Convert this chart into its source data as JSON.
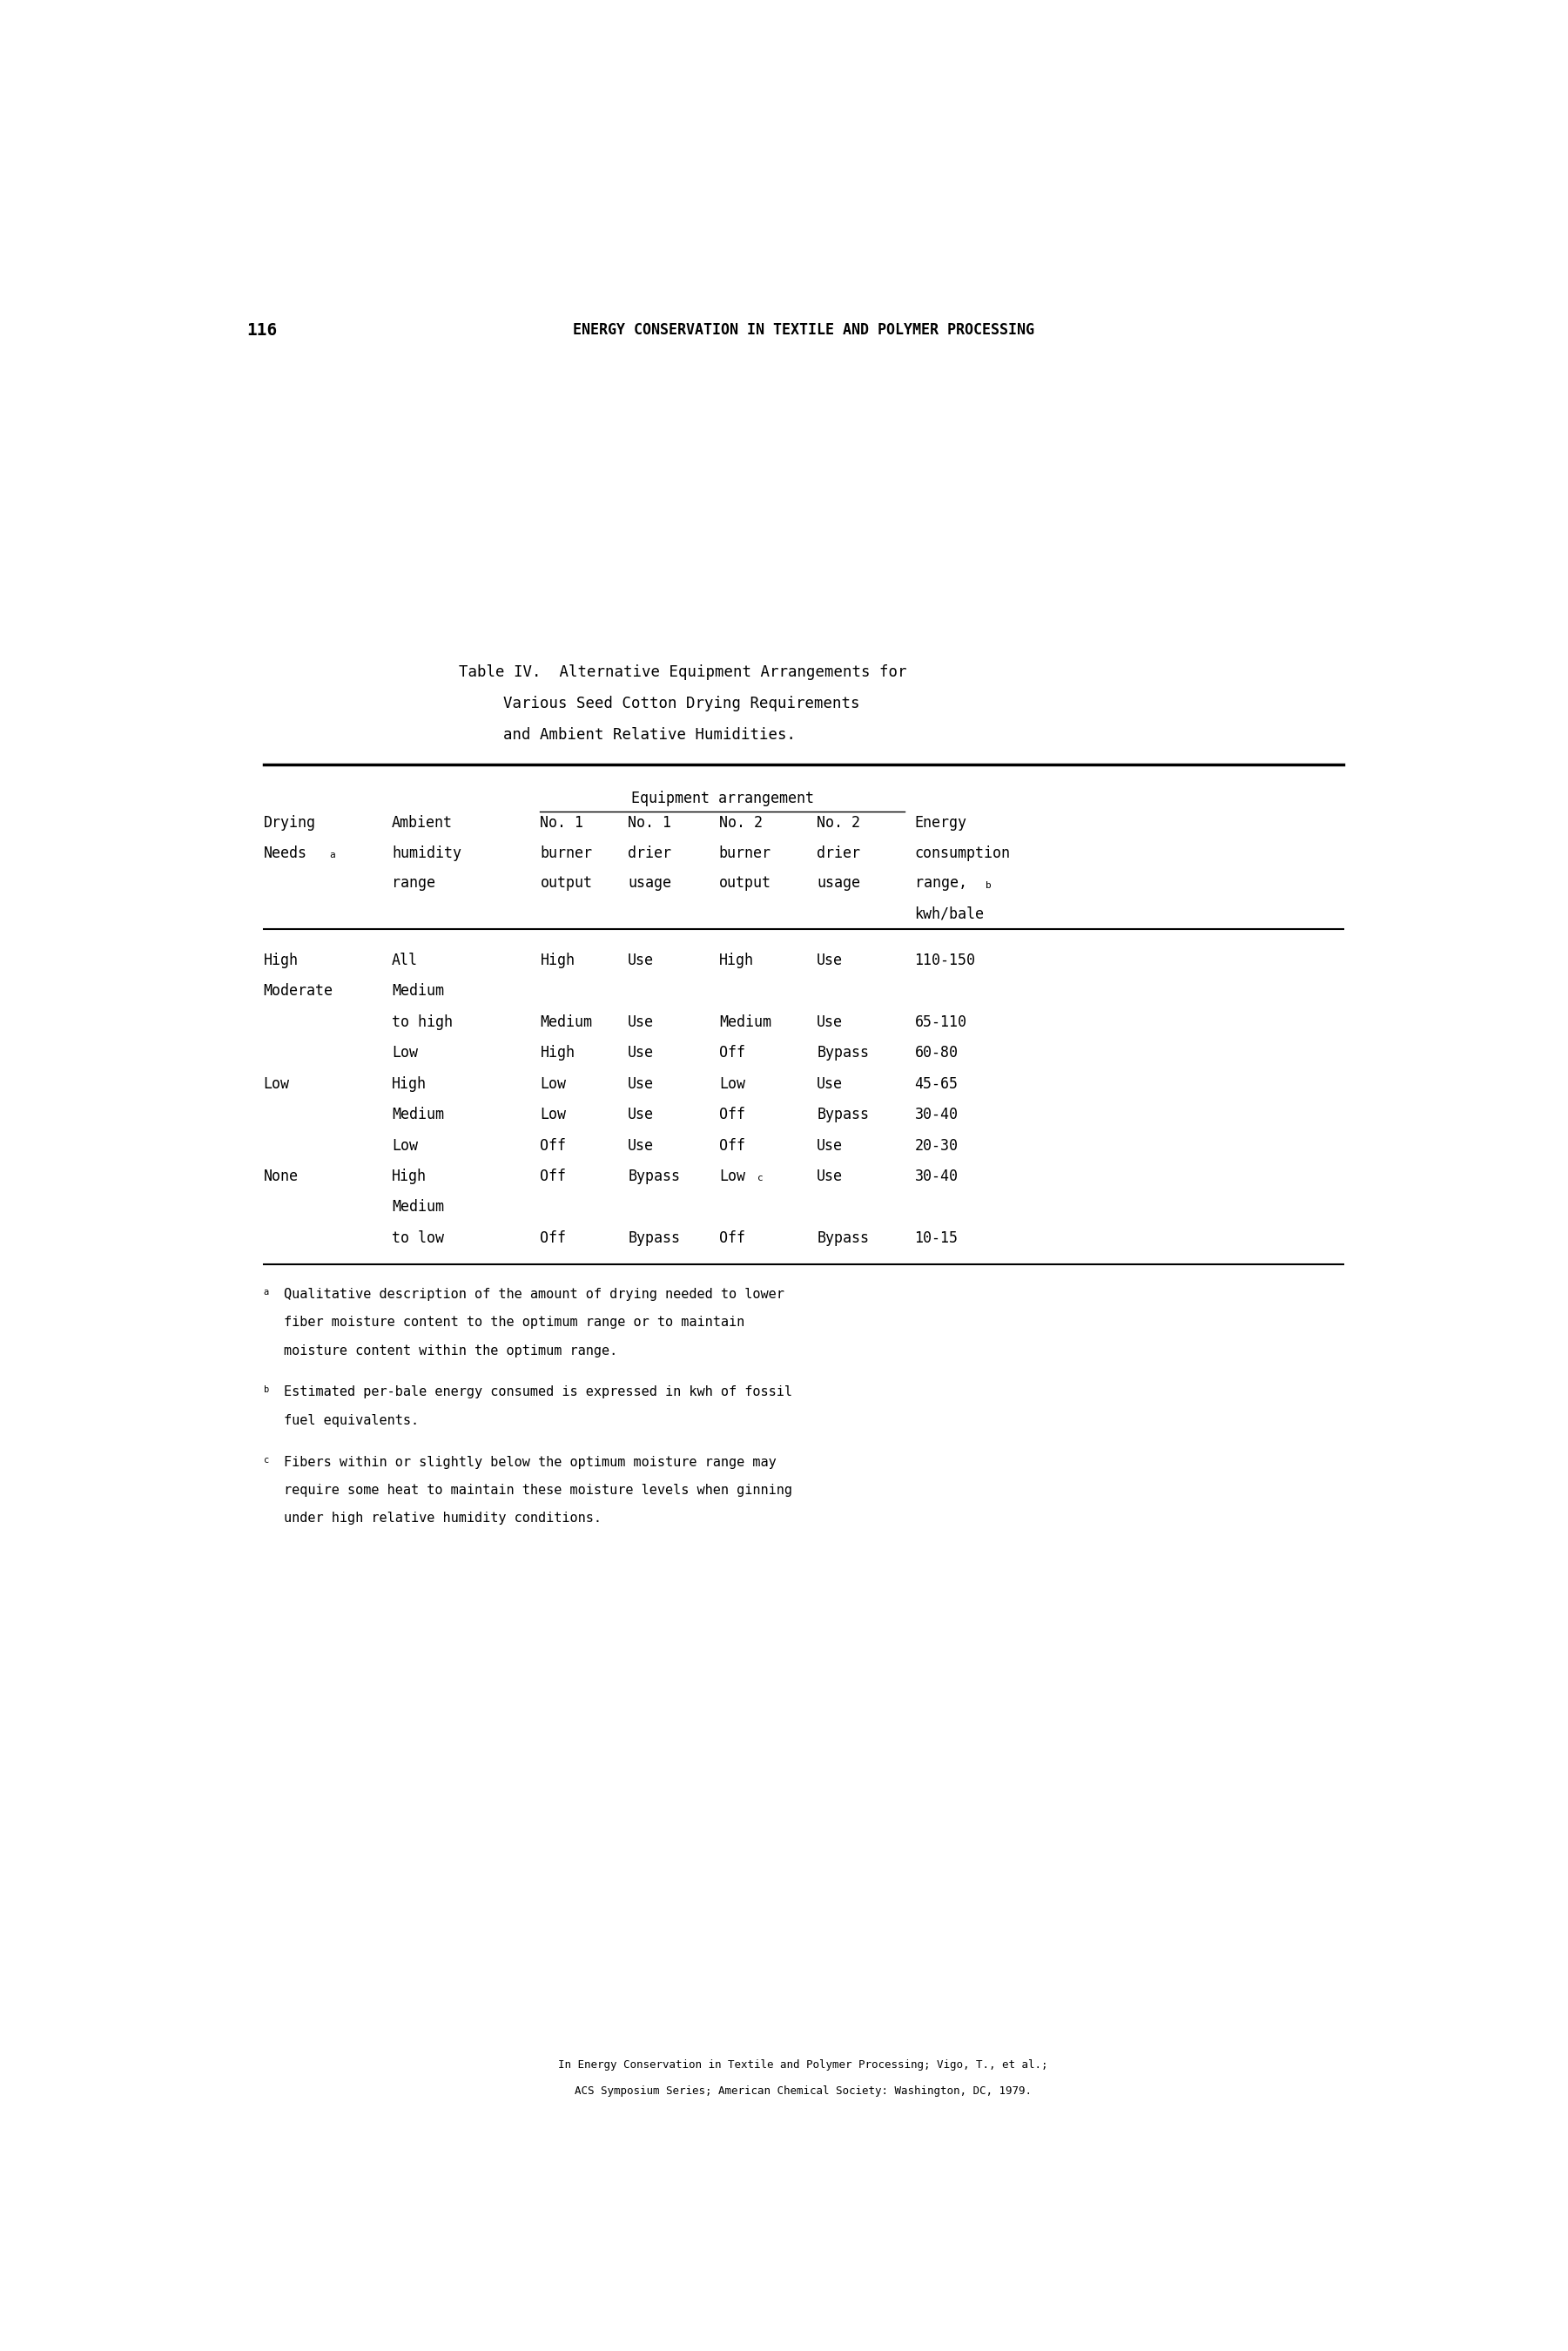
{
  "page_number": "116",
  "header": "ENERGY CONSERVATION IN TEXTILE AND POLYMER PROCESSING",
  "table_title_line1": "Table IV.  Alternative Equipment Arrangements for",
  "table_title_line2": "Various Seed Cotton Drying Requirements",
  "table_title_line3": "and Ambient Relative Humidities.",
  "rows": [
    [
      "High",
      "All",
      "High",
      "Use",
      "High",
      "Use",
      "110-150"
    ],
    [
      "Moderate",
      "Medium",
      "",
      "",
      "",
      "",
      ""
    ],
    [
      "",
      "to high",
      "Medium",
      "Use",
      "Medium",
      "Use",
      "65-110"
    ],
    [
      "",
      "Low",
      "High",
      "Use",
      "Off",
      "Bypass",
      "60-80"
    ],
    [
      "Low",
      "High",
      "Low",
      "Use",
      "Low",
      "Use",
      "45-65"
    ],
    [
      "",
      "Medium",
      "Low",
      "Use",
      "Off",
      "Bypass",
      "30-40"
    ],
    [
      "",
      "Low",
      "Off",
      "Use",
      "Off",
      "Use",
      "20-30"
    ],
    [
      "None",
      "High",
      "Off",
      "Bypass",
      "LOWC",
      "Use",
      "30-40"
    ],
    [
      "",
      "Medium",
      "",
      "",
      "",
      "",
      ""
    ],
    [
      "",
      "to low",
      "Off",
      "Bypass",
      "Off",
      "Bypass",
      "10-15"
    ]
  ],
  "footer_line1": "In Energy Conservation in Textile and Polymer Processing; Vigo, T., et al.;",
  "footer_line2": "ACS Symposium Series; American Chemical Society: Washington, DC, 1979.",
  "bg_color": "#ffffff",
  "text_color": "#000000"
}
